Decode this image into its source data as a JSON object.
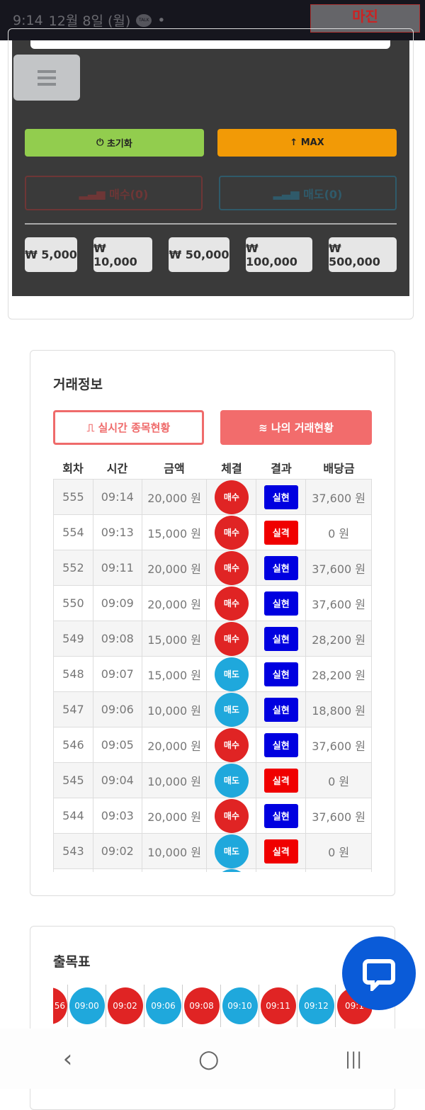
{
  "status_bar": {
    "time": "9:14",
    "date": "12월 8일 (월)",
    "notification_icon": "kakaotalk-icon",
    "dot": "•"
  },
  "watermark": {
    "text": "마진"
  },
  "controls": {
    "reset_label": "초기화",
    "max_label": "MAX",
    "buy_label": "매수(0)",
    "sell_label": "매도(0)",
    "amounts": [
      "₩ 5,000",
      "₩ 10,000",
      "₩ 50,000",
      "₩ 100,000",
      "₩ 500,000"
    ],
    "colors": {
      "reset": "#92cd4e",
      "max": "#f29a06"
    }
  },
  "trade_info": {
    "title": "거래정보",
    "tab_realtime": "실시간 종목현황",
    "tab_mine": "나의 거래현황",
    "headers": [
      "회차",
      "시간",
      "금액",
      "체결",
      "결과",
      "배당금"
    ],
    "rows": [
      [
        "555",
        "09:14",
        "20,000 원",
        "매수",
        "실현",
        "37,600 원"
      ],
      [
        "554",
        "09:13",
        "15,000 원",
        "매수",
        "실격",
        "0 원"
      ],
      [
        "552",
        "09:11",
        "20,000 원",
        "매수",
        "실현",
        "37,600 원"
      ],
      [
        "550",
        "09:09",
        "20,000 원",
        "매수",
        "실현",
        "37,600 원"
      ],
      [
        "549",
        "09:08",
        "15,000 원",
        "매수",
        "실현",
        "28,200 원"
      ],
      [
        "548",
        "09:07",
        "15,000 원",
        "매도",
        "실현",
        "28,200 원"
      ],
      [
        "547",
        "09:06",
        "10,000 원",
        "매도",
        "실현",
        "18,800 원"
      ],
      [
        "546",
        "09:05",
        "20,000 원",
        "매수",
        "실현",
        "37,600 원"
      ],
      [
        "545",
        "09:04",
        "10,000 원",
        "매도",
        "실격",
        "0 원"
      ],
      [
        "544",
        "09:03",
        "20,000 원",
        "매수",
        "실현",
        "37,600 원"
      ],
      [
        "543",
        "09:02",
        "10,000 원",
        "매도",
        "실격",
        "0 원"
      ]
    ],
    "colors": {
      "buy": "#e02424",
      "sell": "#1fa8dc",
      "win": "#0000e0",
      "lose": "#f00000"
    }
  },
  "history": {
    "title": "출목표",
    "items": [
      [
        "56",
        "buy"
      ],
      [
        "09:00",
        "sell"
      ],
      [
        "09:02",
        "buy"
      ],
      [
        "09:06",
        "sell"
      ],
      [
        "09:08",
        "buy"
      ],
      [
        "09:10",
        "sell"
      ],
      [
        "09:11",
        "buy"
      ],
      [
        "09:12",
        "sell"
      ],
      [
        "09:1",
        "buy"
      ]
    ]
  },
  "nav": {
    "back": "‹",
    "home": "○",
    "recents": "|||"
  }
}
